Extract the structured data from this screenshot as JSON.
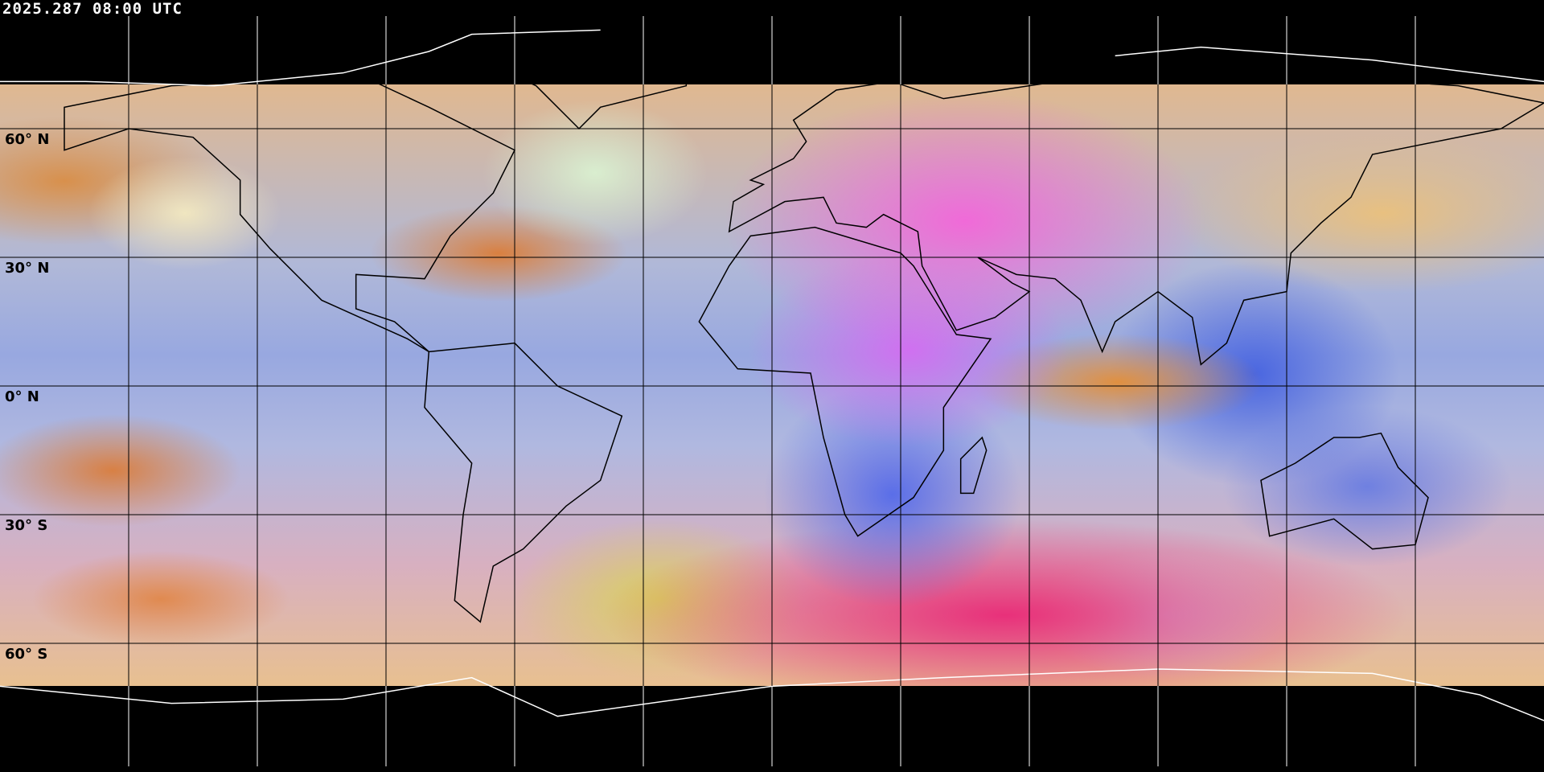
{
  "timestamp": "2025.287 08:00 UTC",
  "latitude_labels": [
    "60° N",
    "30° N",
    "0° N",
    "30° S",
    "60° S"
  ],
  "colors": {
    "background": "#000000",
    "gridline_on_data": "#000000",
    "gridline_on_space": "#ffffff",
    "coastline_on_data": "#000000",
    "coastline_on_space": "#ffffff"
  }
}
